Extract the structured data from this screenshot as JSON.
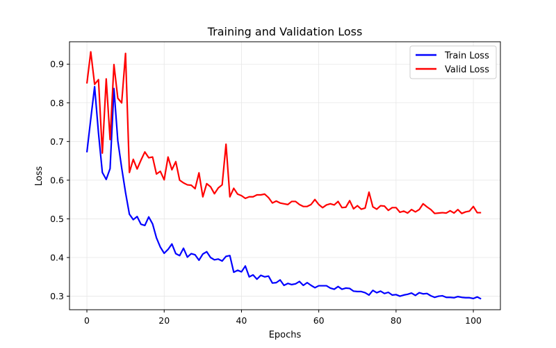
{
  "chart_data": {
    "type": "line",
    "title": "Training and Validation Loss",
    "xlabel": "Epochs",
    "ylabel": "Loss",
    "xlim": [
      -4.5,
      107
    ],
    "ylim": [
      0.265,
      0.958
    ],
    "xticks": [
      0,
      20,
      40,
      60,
      80,
      100
    ],
    "yticks": [
      0.3,
      0.4,
      0.5,
      0.6,
      0.7,
      0.8,
      0.9
    ],
    "grid": true,
    "legend_position": "top-right",
    "series": [
      {
        "name": "Train Loss",
        "color": "#0000ff",
        "values": [
          0.672,
          0.758,
          0.842,
          0.722,
          0.62,
          0.602,
          0.63,
          0.837,
          0.702,
          0.632,
          0.568,
          0.512,
          0.498,
          0.506,
          0.486,
          0.483,
          0.505,
          0.487,
          0.451,
          0.427,
          0.411,
          0.421,
          0.435,
          0.41,
          0.405,
          0.424,
          0.401,
          0.41,
          0.407,
          0.393,
          0.409,
          0.415,
          0.4,
          0.394,
          0.396,
          0.391,
          0.403,
          0.405,
          0.362,
          0.367,
          0.363,
          0.378,
          0.35,
          0.355,
          0.344,
          0.354,
          0.35,
          0.352,
          0.334,
          0.335,
          0.342,
          0.328,
          0.333,
          0.33,
          0.332,
          0.338,
          0.328,
          0.335,
          0.328,
          0.322,
          0.327,
          0.327,
          0.327,
          0.321,
          0.318,
          0.325,
          0.318,
          0.321,
          0.32,
          0.313,
          0.312,
          0.312,
          0.309,
          0.303,
          0.315,
          0.309,
          0.313,
          0.307,
          0.31,
          0.303,
          0.304,
          0.3,
          0.303,
          0.305,
          0.308,
          0.302,
          0.309,
          0.306,
          0.307,
          0.301,
          0.297,
          0.3,
          0.301,
          0.297,
          0.297,
          0.296,
          0.299,
          0.297,
          0.296,
          0.296,
          0.294,
          0.298,
          0.293
        ]
      },
      {
        "name": "Valid Loss",
        "color": "#ff0000",
        "values": [
          0.85,
          0.932,
          0.848,
          0.86,
          0.67,
          0.862,
          0.705,
          0.899,
          0.812,
          0.8,
          0.928,
          0.62,
          0.654,
          0.629,
          0.652,
          0.673,
          0.658,
          0.66,
          0.616,
          0.623,
          0.601,
          0.66,
          0.627,
          0.648,
          0.6,
          0.593,
          0.588,
          0.587,
          0.578,
          0.619,
          0.557,
          0.591,
          0.583,
          0.565,
          0.58,
          0.588,
          0.693,
          0.557,
          0.579,
          0.564,
          0.56,
          0.553,
          0.557,
          0.557,
          0.562,
          0.562,
          0.564,
          0.555,
          0.541,
          0.546,
          0.541,
          0.539,
          0.537,
          0.545,
          0.545,
          0.537,
          0.532,
          0.532,
          0.537,
          0.55,
          0.537,
          0.529,
          0.536,
          0.539,
          0.536,
          0.545,
          0.529,
          0.53,
          0.547,
          0.526,
          0.534,
          0.525,
          0.528,
          0.569,
          0.531,
          0.525,
          0.534,
          0.533,
          0.522,
          0.529,
          0.529,
          0.517,
          0.52,
          0.515,
          0.524,
          0.518,
          0.524,
          0.539,
          0.531,
          0.524,
          0.514,
          0.515,
          0.516,
          0.515,
          0.521,
          0.515,
          0.524,
          0.514,
          0.518,
          0.52,
          0.532,
          0.516,
          0.516
        ]
      }
    ]
  }
}
